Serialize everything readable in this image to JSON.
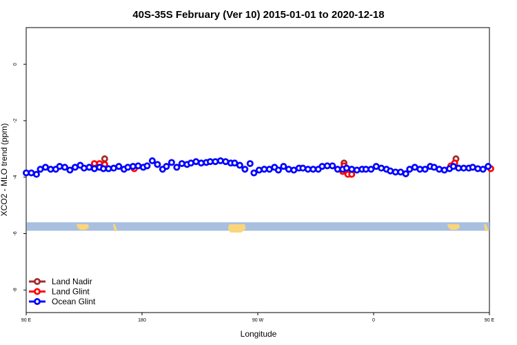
{
  "chart_data": {
    "type": "scatter",
    "title": "40S-35S February (Ver 10)   2015-01-01 to 2020-12-18",
    "xlabel": "Longitude",
    "ylabel": "XCO2 - MLO trend (ppm)",
    "xlim": [
      90,
      450
    ],
    "ylim": [
      -8.8,
      1.3
    ],
    "x_ticks": [
      {
        "value": 90,
        "label": "90 E"
      },
      {
        "value": 180,
        "label": "180"
      },
      {
        "value": 270,
        "label": "90 W"
      },
      {
        "value": 360,
        "label": "0"
      },
      {
        "value": 450,
        "label": "90 E"
      },
      {
        "value": 540,
        "label": "180"
      }
    ],
    "y_ticks": [
      {
        "value": 0,
        "label": "0"
      },
      {
        "value": -2,
        "label": "-2"
      },
      {
        "value": -4,
        "label": "-4"
      },
      {
        "value": -6,
        "label": "-6"
      },
      {
        "value": -8,
        "label": "-8"
      }
    ],
    "legend_position": "bottom-left",
    "grid": false,
    "series": [
      {
        "name": "Land Nadir",
        "color": "#a52a2a",
        "points": [
          [
            151,
            -3.35
          ],
          [
            337,
            -3.5
          ],
          [
            424,
            -3.35
          ]
        ]
      },
      {
        "name": "Land Glint",
        "color": "#ff0000",
        "points": [
          [
            143,
            -3.52
          ],
          [
            147,
            -3.52
          ],
          [
            151,
            -3.55
          ],
          [
            174,
            -3.7
          ],
          [
            336,
            -3.8
          ],
          [
            337,
            -3.6
          ],
          [
            340,
            -3.9
          ],
          [
            343,
            -3.9
          ],
          [
            420,
            -3.6
          ],
          [
            423,
            -3.5
          ],
          [
            451,
            -3.7
          ]
        ]
      },
      {
        "name": "Ocean Glint",
        "color": "#0000ff",
        "points": [
          [
            90,
            -3.85
          ],
          [
            94,
            -3.85
          ],
          [
            98,
            -3.9
          ],
          [
            101,
            -3.72
          ],
          [
            105,
            -3.65
          ],
          [
            109,
            -3.72
          ],
          [
            113,
            -3.72
          ],
          [
            116,
            -3.62
          ],
          [
            120,
            -3.65
          ],
          [
            124,
            -3.75
          ],
          [
            128,
            -3.65
          ],
          [
            132,
            -3.58
          ],
          [
            135,
            -3.68
          ],
          [
            139,
            -3.65
          ],
          [
            143,
            -3.7
          ],
          [
            147,
            -3.65
          ],
          [
            150,
            -3.7
          ],
          [
            154,
            -3.7
          ],
          [
            158,
            -3.68
          ],
          [
            162,
            -3.62
          ],
          [
            166,
            -3.72
          ],
          [
            169,
            -3.65
          ],
          [
            173,
            -3.62
          ],
          [
            177,
            -3.6
          ],
          [
            181,
            -3.65
          ],
          [
            184,
            -3.6
          ],
          [
            188,
            -3.42
          ],
          [
            192,
            -3.55
          ],
          [
            196,
            -3.72
          ],
          [
            199,
            -3.62
          ],
          [
            203,
            -3.48
          ],
          [
            207,
            -3.65
          ],
          [
            211,
            -3.52
          ],
          [
            215,
            -3.55
          ],
          [
            218,
            -3.5
          ],
          [
            222,
            -3.45
          ],
          [
            226,
            -3.5
          ],
          [
            230,
            -3.48
          ],
          [
            233,
            -3.45
          ],
          [
            237,
            -3.45
          ],
          [
            241,
            -3.42
          ],
          [
            245,
            -3.45
          ],
          [
            249,
            -3.5
          ],
          [
            252,
            -3.5
          ],
          [
            256,
            -3.58
          ],
          [
            260,
            -3.72
          ],
          [
            264,
            -3.52
          ],
          [
            267,
            -3.85
          ],
          [
            271,
            -3.75
          ],
          [
            275,
            -3.72
          ],
          [
            279,
            -3.72
          ],
          [
            283,
            -3.65
          ],
          [
            286,
            -3.75
          ],
          [
            290,
            -3.62
          ],
          [
            294,
            -3.72
          ],
          [
            298,
            -3.75
          ],
          [
            302,
            -3.68
          ],
          [
            305,
            -3.68
          ],
          [
            309,
            -3.72
          ],
          [
            313,
            -3.72
          ],
          [
            317,
            -3.72
          ],
          [
            320,
            -3.62
          ],
          [
            324,
            -3.6
          ],
          [
            328,
            -3.6
          ],
          [
            332,
            -3.72
          ],
          [
            336,
            -3.72
          ],
          [
            339,
            -3.68
          ],
          [
            343,
            -3.72
          ],
          [
            347,
            -3.75
          ],
          [
            351,
            -3.72
          ],
          [
            354,
            -3.72
          ],
          [
            358,
            -3.72
          ],
          [
            362,
            -3.62
          ],
          [
            366,
            -3.68
          ],
          [
            370,
            -3.72
          ],
          [
            373,
            -3.78
          ],
          [
            377,
            -3.82
          ],
          [
            381,
            -3.82
          ],
          [
            385,
            -3.88
          ],
          [
            388,
            -3.72
          ],
          [
            392,
            -3.65
          ],
          [
            396,
            -3.72
          ],
          [
            400,
            -3.72
          ],
          [
            404,
            -3.62
          ],
          [
            407,
            -3.65
          ],
          [
            411,
            -3.72
          ],
          [
            415,
            -3.75
          ],
          [
            419,
            -3.7
          ],
          [
            422,
            -3.62
          ],
          [
            426,
            -3.68
          ],
          [
            430,
            -3.68
          ],
          [
            434,
            -3.68
          ],
          [
            437,
            -3.65
          ],
          [
            441,
            -3.7
          ],
          [
            445,
            -3.72
          ],
          [
            449,
            -3.62
          ]
        ]
      }
    ]
  },
  "map_strip": {
    "y_top": -5.6,
    "y_bottom": -5.9,
    "ocean_color": "#a9bfdf",
    "land_color": "#fbd57a"
  }
}
